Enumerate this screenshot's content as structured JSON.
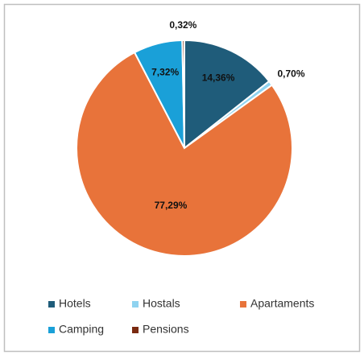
{
  "chart_data": {
    "type": "pie",
    "categories": [
      "Hotels",
      "Hostals",
      "Apartaments",
      "Camping",
      "Pensions"
    ],
    "values": [
      14.36,
      0.7,
      77.29,
      7.32,
      0.32
    ],
    "value_labels": [
      "14,36%",
      "0,70%",
      "77,29%",
      "7,32%",
      "0,32%"
    ],
    "colors": [
      "#1f5c7a",
      "#8fd3f0",
      "#e8733a",
      "#1aa0d8",
      "#7a2a10"
    ],
    "legend": "bottom"
  }
}
